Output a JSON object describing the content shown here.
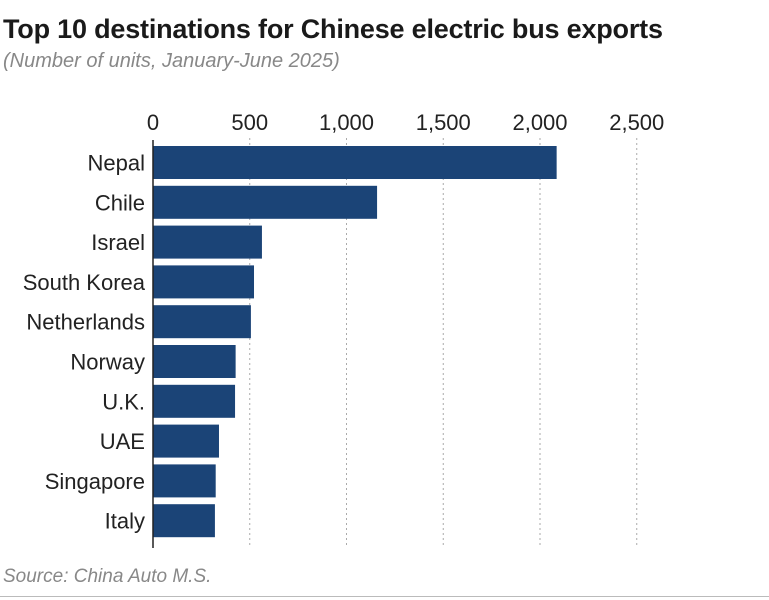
{
  "chart_data": {
    "type": "bar",
    "title": "Top 10 destinations for Chinese electric bus exports",
    "subtitle": "(Number of units, January-June 2025)",
    "source": "Source: China Auto M.S.",
    "categories": [
      "Nepal",
      "Chile",
      "Israel",
      "South Korea",
      "Netherlands",
      "Norway",
      "U.K.",
      "UAE",
      "Singapore",
      "Italy"
    ],
    "values": [
      2086,
      1158,
      563,
      522,
      506,
      427,
      424,
      341,
      324,
      320
    ],
    "xlim": [
      0,
      2500
    ],
    "ticks": [
      0,
      500,
      1000,
      1500,
      2000,
      2500
    ],
    "tick_labels": [
      "0",
      "500",
      "1,000",
      "1,500",
      "2,000",
      "2,500"
    ],
    "grid": true,
    "bar_color": "#1b4477"
  }
}
